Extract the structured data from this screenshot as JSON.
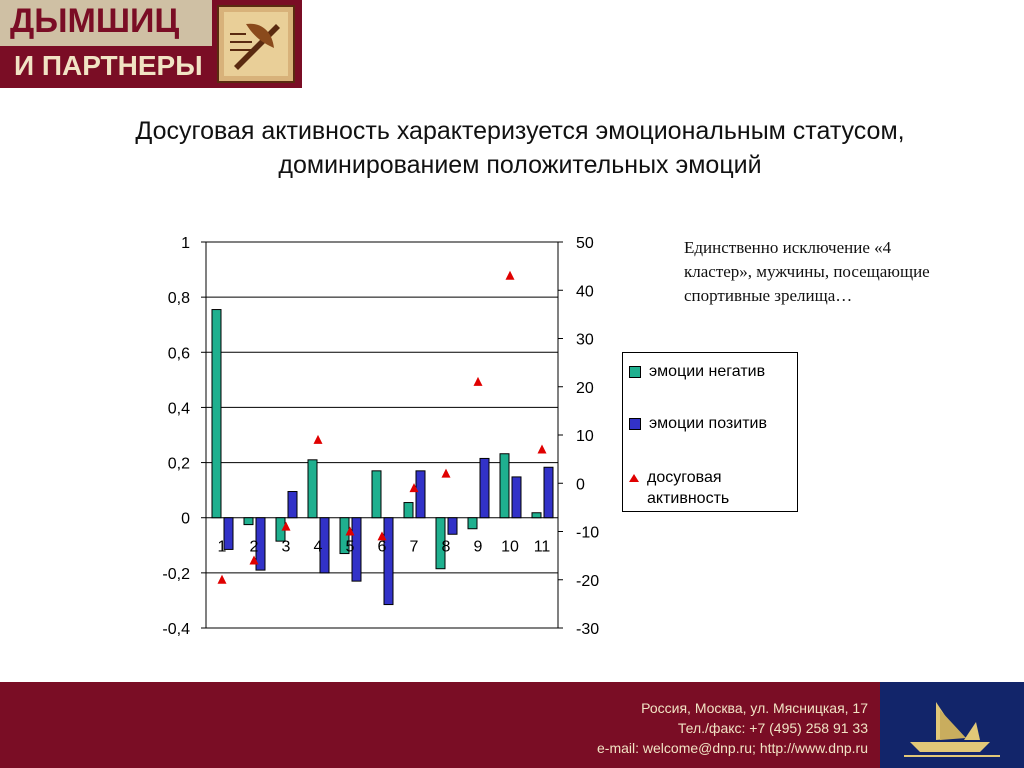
{
  "logo": {
    "line1": "ДЫМШИЦ",
    "line2": "И ПАРТНЕРЫ"
  },
  "title": "Досуговая активность характеризуется эмоциональным статусом, доминированием положительных эмоций",
  "note": "Единственно исключение «4 кластер», мужчины, посещающие спортивные зрелища…",
  "colors": {
    "negative": "#1fb08f",
    "positive": "#3232c8",
    "activity": "#e00000",
    "brand": "#7a0d25",
    "footer_right": "#12256a"
  },
  "chart_data": {
    "type": "bar",
    "categories": [
      "1",
      "2",
      "3",
      "4",
      "5",
      "6",
      "7",
      "8",
      "9",
      "10",
      "11"
    ],
    "series": [
      {
        "name": "эмоции негатив",
        "axis": "left",
        "type": "bar",
        "color": "#1fb08f",
        "values": [
          0.755,
          -0.025,
          -0.085,
          0.21,
          -0.13,
          0.17,
          0.055,
          -0.185,
          -0.04,
          0.232,
          0.018
        ]
      },
      {
        "name": "эмоции позитив",
        "axis": "left",
        "type": "bar",
        "color": "#3232c8",
        "values": [
          -0.115,
          -0.19,
          0.095,
          -0.2,
          -0.23,
          -0.315,
          0.17,
          -0.06,
          0.215,
          0.148,
          0.183
        ]
      },
      {
        "name": "досуговая активность",
        "axis": "right",
        "type": "scatter",
        "marker": "triangle",
        "color": "#e00000",
        "values": [
          -20,
          -16,
          -9,
          9,
          -10,
          -11,
          -1,
          2,
          21,
          43,
          7
        ]
      }
    ],
    "y_left": {
      "lim": [
        -0.4,
        1
      ],
      "ticks": [
        "1",
        "0,8",
        "0,6",
        "0,4",
        "0,2",
        "0",
        "-0,2",
        "-0,4"
      ],
      "tick_values": [
        1,
        0.8,
        0.6,
        0.4,
        0.2,
        0,
        -0.2,
        -0.4
      ]
    },
    "y_right": {
      "lim": [
        -30,
        50
      ],
      "ticks": [
        "50",
        "40",
        "30",
        "20",
        "10",
        "0",
        "-10",
        "-20",
        "-30"
      ],
      "tick_values": [
        50,
        40,
        30,
        20,
        10,
        0,
        -10,
        -20,
        -30
      ]
    },
    "grid": true,
    "legend_placement": "right"
  },
  "legend": {
    "items": [
      {
        "label": "эмоции негатив"
      },
      {
        "label": "эмоции позитив"
      },
      {
        "label": "досуговая активность"
      }
    ]
  },
  "footer": {
    "line1": "Россия, Москва, ул. Мясницкая, 17",
    "line2": "Тел./факс: +7 (495) 258 91 33",
    "line3": "e-mail: welcome@dnp.ru; http://www.dnp.ru"
  }
}
